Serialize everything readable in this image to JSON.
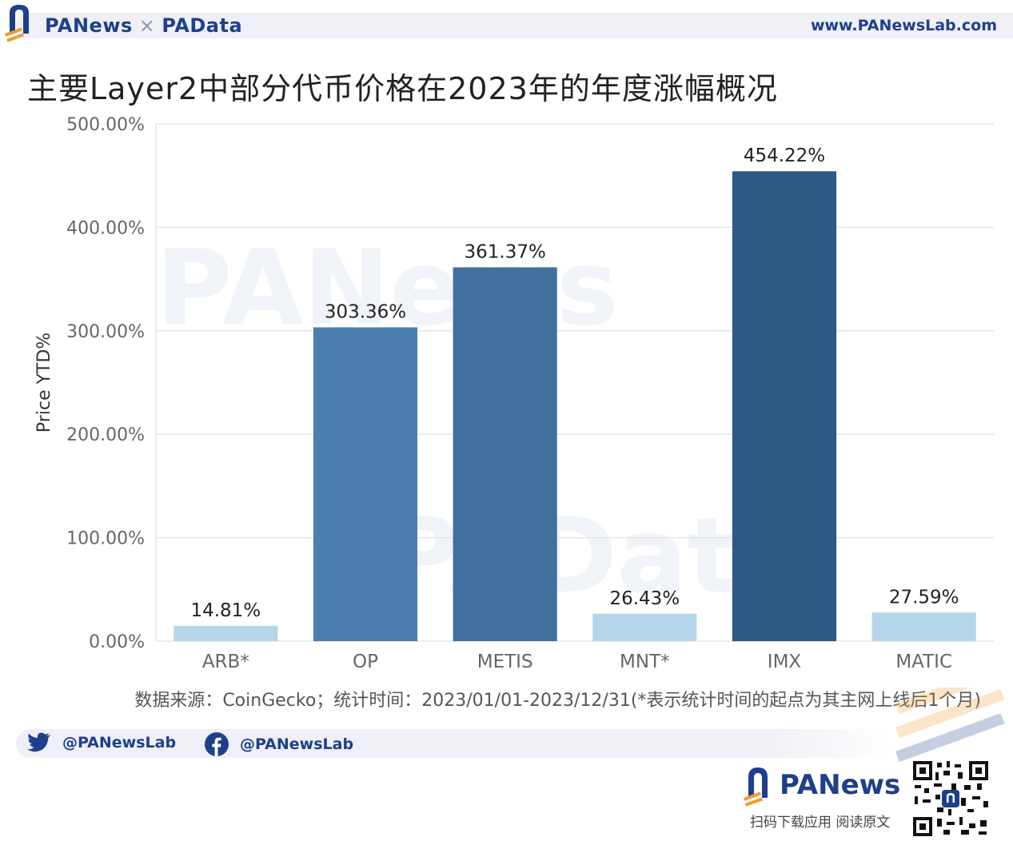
{
  "header": {
    "brand_left": "PANews",
    "brand_times": "×",
    "brand_right": "PAData",
    "url": "www.PANewsLab.com"
  },
  "chart_data": {
    "type": "bar",
    "title": "主要Layer2中部分代币价格在2023年的年度涨幅概况",
    "ylabel": "Price YTD%",
    "xlabel": "",
    "categories": [
      "ARB*",
      "OP",
      "METIS",
      "MNT*",
      "IMX",
      "MATIC"
    ],
    "values": [
      14.81,
      303.36,
      361.37,
      26.43,
      454.22,
      27.59
    ],
    "value_labels": [
      "14.81%",
      "303.36%",
      "361.37%",
      "26.43%",
      "454.22%",
      "27.59%"
    ],
    "bar_colors": [
      "#b5d5ea",
      "#4a7eb0",
      "#41709f",
      "#b5d5ea",
      "#2c5986",
      "#b5d5ea"
    ],
    "ylim": [
      0,
      500
    ],
    "yticks": [
      0,
      100,
      200,
      300,
      400,
      500
    ],
    "ytick_labels": [
      "0.00%",
      "100.00%",
      "200.00%",
      "300.00%",
      "400.00%",
      "500.00%"
    ],
    "grid": true,
    "watermarks": [
      "PANews",
      "PAData"
    ]
  },
  "source_note": "数据来源：CoinGecko；统计时间：2023/01/01-2023/12/31(*表示统计时间的起点为其主网上线后1个月)",
  "social": {
    "twitter": "@PANewsLab",
    "facebook": "@PANewsLab"
  },
  "footer": {
    "brand": "PANews",
    "caption": "扫码下载应用 阅读原文"
  },
  "colors": {
    "brand_blue": "#1d3f8c",
    "brand_orange": "#f29a2e"
  }
}
